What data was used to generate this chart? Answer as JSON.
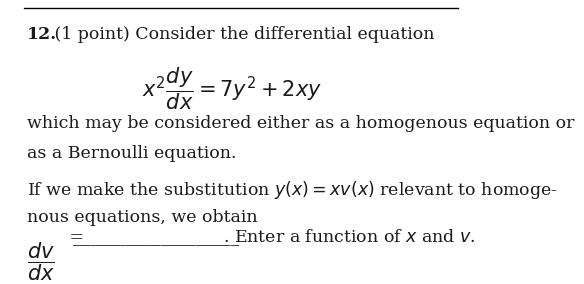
{
  "bg_color": "#ffffff",
  "text_color": "#1a1a1a",
  "label_bold": "12.",
  "label_normal": " (1 point) Consider the differential equation",
  "equation": "$x^2\\dfrac{dy}{dx} = 7y^2 + 2xy$",
  "body1": "which may be considered either as a homogenous equation or",
  "body2": "as a Bernoulli equation.",
  "body3": "If we make the substitution $y(x) = xv(x)$ relevant to homoge-",
  "body4": "nous equations, we obtain",
  "dv_dx": "$\\dfrac{dv}{dx}$",
  "equals_line": " =",
  "underline_text": "___________________",
  "period_and_enter": ". Enter a function of $x$ and $v$.",
  "font_size_body": 12.5,
  "font_size_eq": 15
}
